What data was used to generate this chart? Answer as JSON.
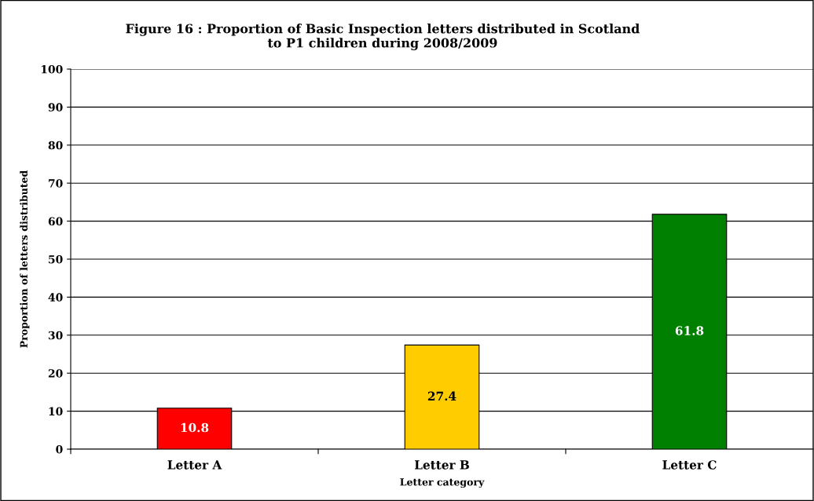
{
  "chart_data": {
    "type": "bar",
    "title": "Figure 16 : Proportion of Basic Inspection letters distributed in Scotland\nto P1 children during 2008/2009",
    "xlabel": "Letter category",
    "ylabel": "Proportion of letters distributed",
    "categories": [
      "Letter A",
      "Letter B",
      "Letter C"
    ],
    "values": [
      10.8,
      27.4,
      61.8
    ],
    "colors": [
      "#ff0000",
      "#ffcc00",
      "#008000"
    ],
    "ylim": [
      0,
      100
    ],
    "yticks": [
      0,
      10,
      20,
      30,
      40,
      50,
      60,
      70,
      80,
      90,
      100
    ],
    "grid": "y",
    "data_labels": true
  }
}
